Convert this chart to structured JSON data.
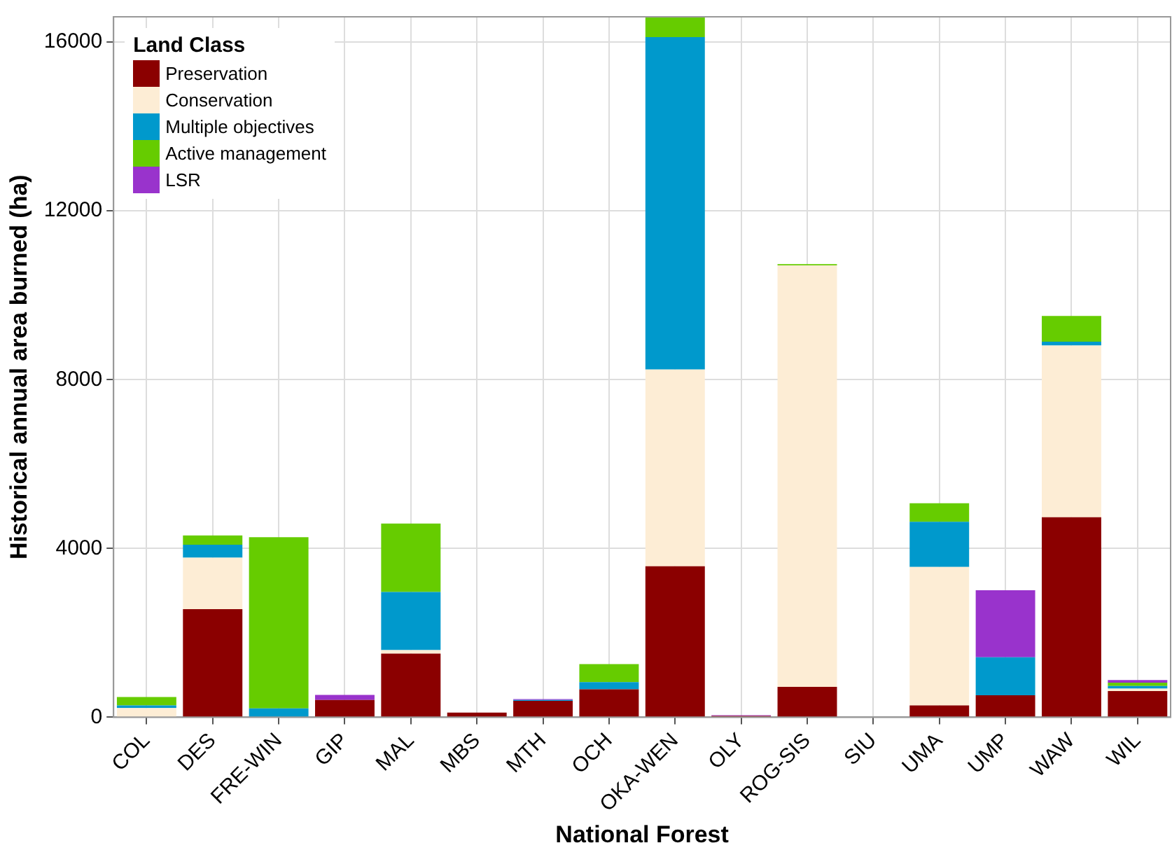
{
  "chart_data": {
    "type": "bar",
    "stacked": true,
    "xlabel": "National Forest",
    "ylabel": "Historical annual area burned (ha)",
    "legend_title": "Land Class",
    "legend": "top left",
    "grid": true,
    "categories": [
      "COL",
      "DES",
      "FRE-WIN",
      "GIP",
      "MAL",
      "MBS",
      "MTH",
      "OCH",
      "OKA-WEN",
      "OLY",
      "ROG-SIS",
      "SIU",
      "UMA",
      "UMP",
      "WAW",
      "WIL"
    ],
    "ylim": [
      0,
      16600
    ],
    "yticks": [
      0,
      4000,
      8000,
      12000,
      16000
    ],
    "series": [
      {
        "name": "Preservation",
        "color": "#8b0000",
        "values": [
          0,
          2560,
          0,
          410,
          1510,
          110,
          390,
          660,
          3580,
          30,
          720,
          0,
          280,
          520,
          4740,
          620
        ]
      },
      {
        "name": "Conservation",
        "color": "#fdedd5",
        "values": [
          220,
          1220,
          0,
          0,
          80,
          0,
          0,
          0,
          4660,
          0,
          9990,
          0,
          3280,
          0,
          4070,
          60
        ]
      },
      {
        "name": "Multiple objectives",
        "color": "#0099cc",
        "values": [
          60,
          310,
          210,
          0,
          1380,
          0,
          20,
          170,
          7880,
          0,
          0,
          0,
          1070,
          900,
          90,
          60
        ]
      },
      {
        "name": "Active management",
        "color": "#66cc00",
        "values": [
          200,
          220,
          4055,
          0,
          1620,
          0,
          0,
          430,
          480,
          0,
          30,
          0,
          440,
          0,
          610,
          80
        ]
      },
      {
        "name": "LSR",
        "color": "#9933cc",
        "values": [
          0,
          0,
          0,
          120,
          0,
          0,
          20,
          0,
          0,
          20,
          0,
          0,
          0,
          1590,
          0,
          60
        ]
      }
    ]
  }
}
